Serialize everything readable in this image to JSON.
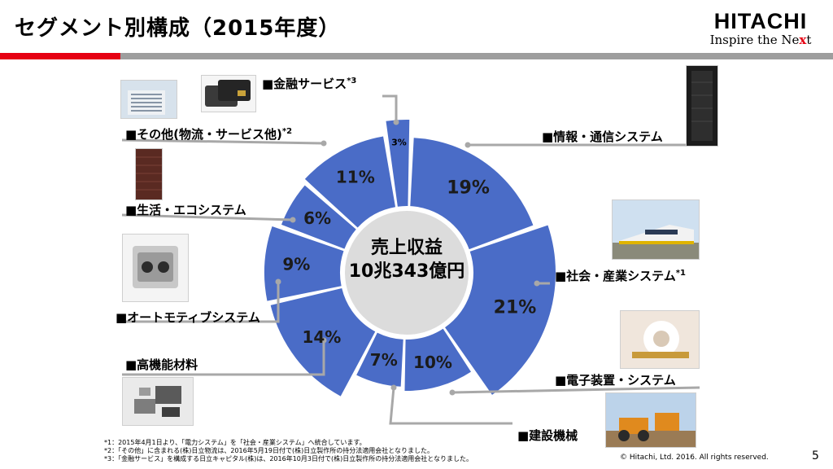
{
  "header": {
    "title": "セグメント別構成（2015年度）",
    "logo_word": "HITACHI",
    "logo_tag": "Inspire the Ne",
    "logo_tag_x": "x",
    "logo_tag_end": "t",
    "accent_red": "#e60012"
  },
  "center": {
    "line1": "売上収益",
    "line2": "10兆343億円"
  },
  "chart_data": {
    "type": "pie",
    "center_text": [
      "売上収益",
      "10兆343億円"
    ],
    "slice_color": "#4a6cc7",
    "hole_color": "#dcdcdc",
    "slices": [
      {
        "label": "情報・通信システム",
        "value": 19,
        "display": "19%"
      },
      {
        "label": "社会・産業システム",
        "value": 21,
        "display": "21%"
      },
      {
        "label": "電子装置・システム",
        "value": 10,
        "display": "10%"
      },
      {
        "label": "建設機械",
        "value": 7,
        "display": "7%"
      },
      {
        "label": "高機能材料",
        "value": 14,
        "display": "14%"
      },
      {
        "label": "オートモティブシステム",
        "value": 9,
        "display": "9%"
      },
      {
        "label": "生活・エコシステム",
        "value": 6,
        "display": "6%"
      },
      {
        "label": "その他(物流・サービス他)",
        "value": 11,
        "display": "11%"
      },
      {
        "label": "金融サービス",
        "value": 3,
        "display": "3%"
      }
    ]
  },
  "labels": {
    "info": "■情報・通信システム",
    "social": "■社会・産業システム",
    "social_note": "*1",
    "electronic": "■電子装置・システム",
    "construction": "■建設機械",
    "materials": "■高機能材料",
    "auto": "■オートモティブシステム",
    "eco": "■生活・エコシステム",
    "other": "■その他(物流・サービス他)",
    "other_note": "*2",
    "finance": "■金融サービス",
    "finance_note": "*3"
  },
  "footnotes": [
    "*1：2015年4月1日より、「電力システム」を「社会・産業システム」へ統合しています。",
    "*2：「その他」に含まれる(株)日立物流は、2016年5月19日付で(株)日立製作所の持分法適用会社となりました。",
    "*3：「金融サービス」を構成する日立キャピタル(株)は、2016年10月3日付で(株)日立製作所の持分法適用会社となりました。"
  ],
  "footer": {
    "copyright": "© Hitachi, Ltd. 2016. All rights reserved.",
    "page": "5"
  }
}
